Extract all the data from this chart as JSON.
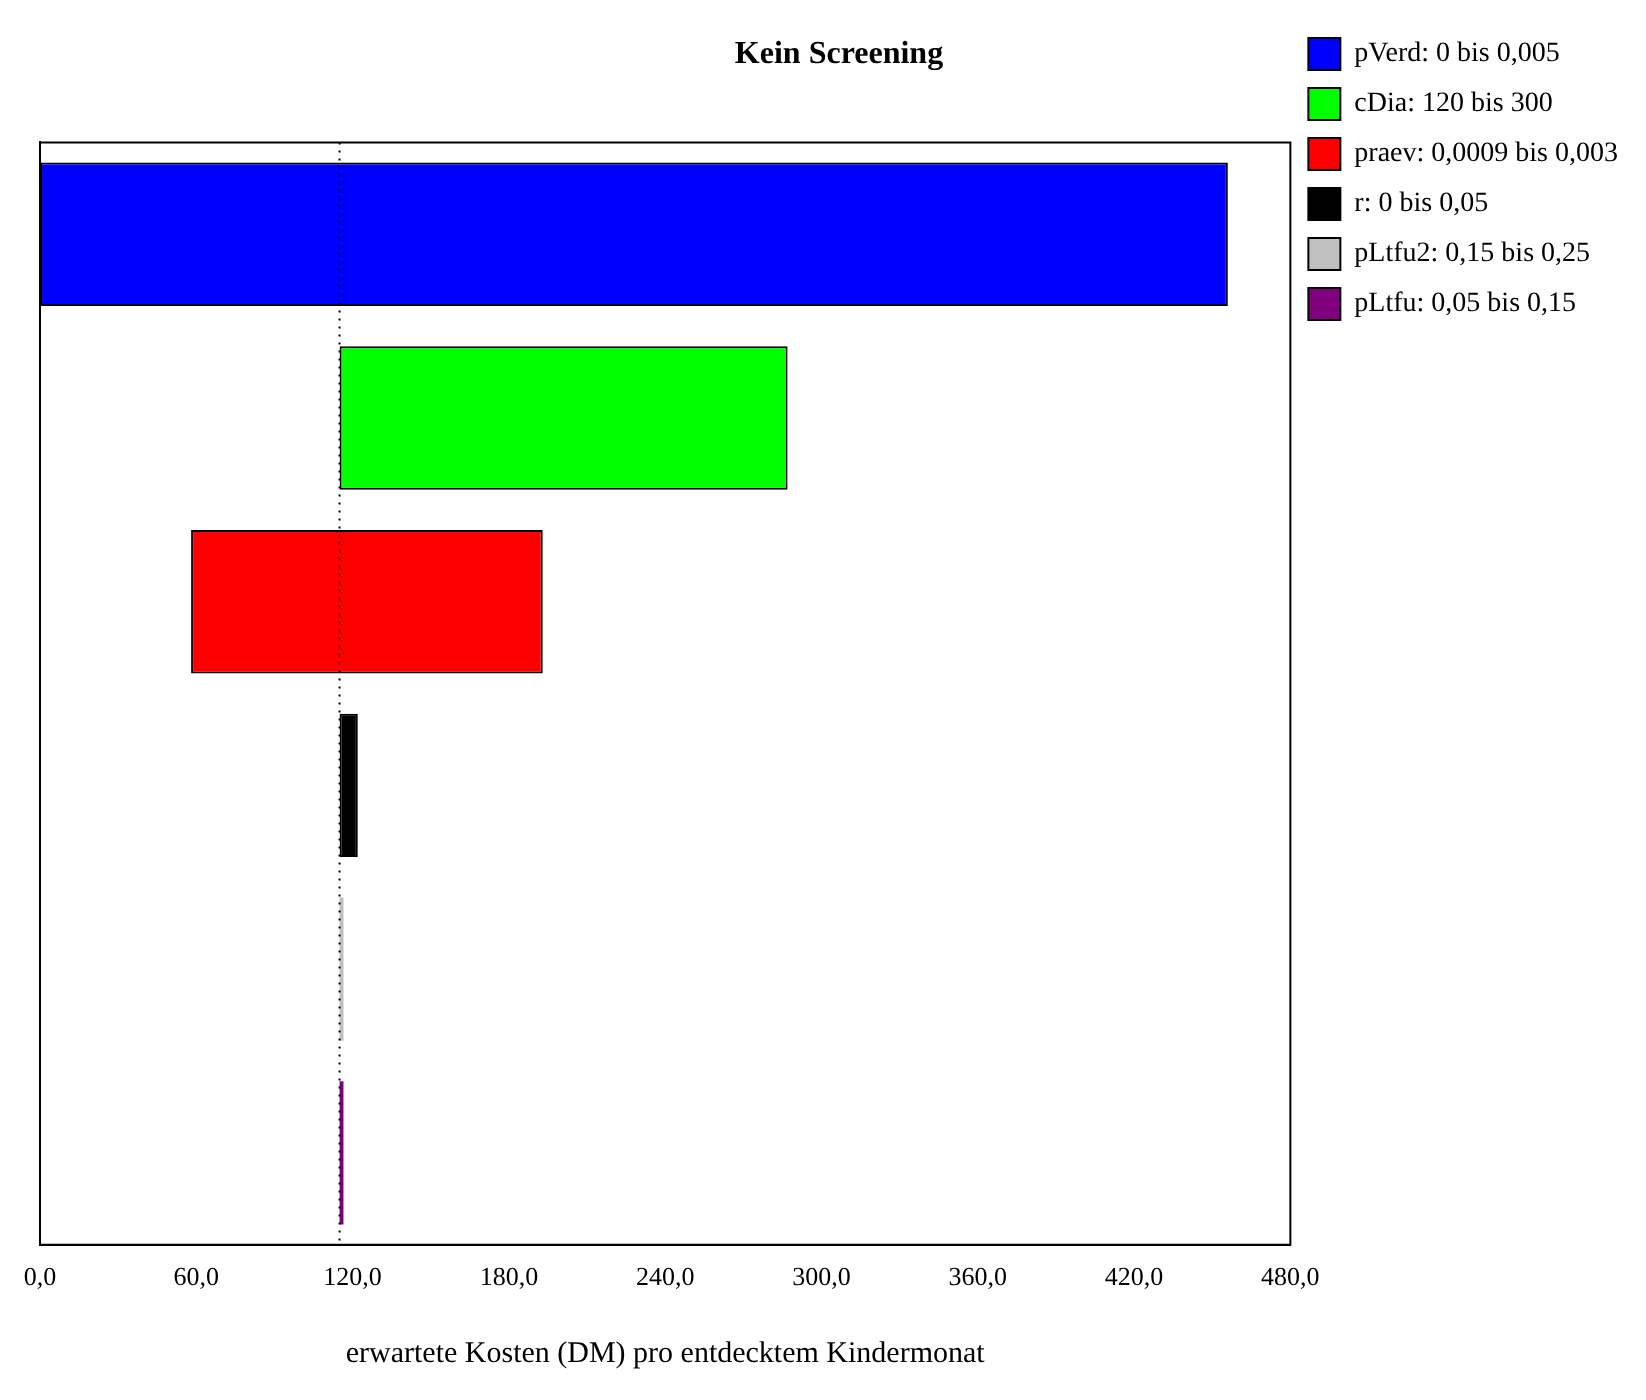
{
  "chart_data": {
    "type": "bar",
    "orientation": "horizontal",
    "title": "Kein Screening",
    "xlabel": "erwartete Kosten (DM) pro entdecktem Kindermonat",
    "categories": [
      null,
      null,
      null,
      null,
      null,
      null
    ],
    "series": [
      {
        "name": "pVerd: 0 bis 0,005",
        "color": "#0000ff",
        "values": [
          456,
          null,
          null,
          null,
          null,
          null
        ],
        "base": [
          0,
          null,
          null,
          null,
          null,
          null
        ]
      },
      {
        "name": "cDia: 120 bis 300",
        "color": "#00ff00",
        "values": [
          null,
          172,
          null,
          null,
          null,
          null
        ],
        "base": [
          null,
          115,
          null,
          null,
          null,
          null
        ]
      },
      {
        "name": "praev: 0,0009 bis 0,003",
        "color": "#ff0000",
        "values": [
          null,
          null,
          135,
          null,
          null,
          null
        ],
        "base": [
          null,
          null,
          58,
          null,
          null,
          null
        ]
      },
      {
        "name": "r: 0 bis 0,05",
        "color": "#000000",
        "values": [
          null,
          null,
          null,
          7,
          null,
          null
        ],
        "base": [
          null,
          null,
          null,
          115,
          null,
          null
        ]
      },
      {
        "name": "pLtfu2: 0,15 bis 0,25",
        "color": "#c0c0c0",
        "values": [
          null,
          null,
          null,
          null,
          1.5,
          null
        ],
        "base": [
          null,
          null,
          null,
          null,
          115,
          null
        ]
      },
      {
        "name": "pLtfu: 0,05 bis 0,15",
        "color": "#800080",
        "values": [
          null,
          null,
          null,
          null,
          null,
          1.5
        ],
        "base": [
          null,
          null,
          null,
          null,
          null,
          115
        ]
      }
    ],
    "xlim": [
      0,
      480
    ],
    "xticks": [
      {
        "value": 0,
        "label": "0,0"
      },
      {
        "value": 60,
        "label": "60,0"
      },
      {
        "value": 120,
        "label": "120,0"
      },
      {
        "value": 180,
        "label": "180,0"
      },
      {
        "value": 240,
        "label": "240,0"
      },
      {
        "value": 300,
        "label": "300,0"
      },
      {
        "value": 360,
        "label": "360,0"
      },
      {
        "value": 420,
        "label": "420,0"
      },
      {
        "value": 480,
        "label": "480,0"
      }
    ],
    "ref_lines": [
      {
        "axis": "x",
        "value": 115,
        "line_style": "dotted",
        "color": "#000000"
      }
    ],
    "grid": false,
    "legend": "top right",
    "tick_labels": "x"
  }
}
